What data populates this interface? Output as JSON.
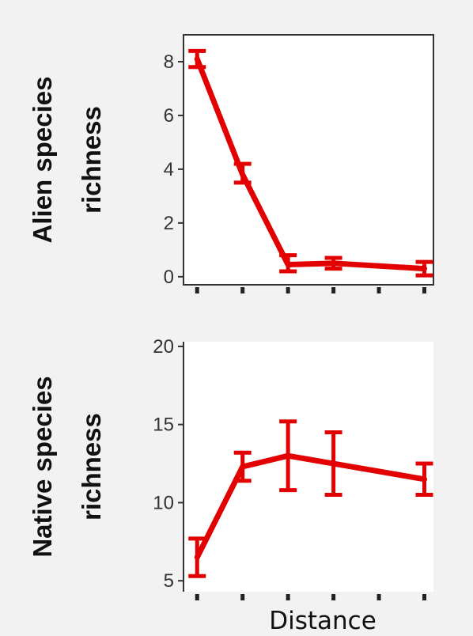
{
  "chart_data": [
    {
      "type": "line",
      "ylabel_lines": [
        "Alien species",
        "richness"
      ],
      "xlabel": "",
      "ylim": [
        -0.3,
        9
      ],
      "yticks": [
        0,
        2,
        4,
        6,
        8
      ],
      "x": [
        1,
        2,
        3,
        4,
        5,
        6
      ],
      "xlim": [
        0.7,
        6.2
      ],
      "grid": false,
      "color": "#e30000",
      "series": [
        {
          "points": [
            {
              "x": 1,
              "y": 8.1,
              "lo": 7.8,
              "hi": 8.4
            },
            {
              "x": 2,
              "y": 3.8,
              "lo": 3.5,
              "hi": 4.2
            },
            {
              "x": 3,
              "y": 0.45,
              "lo": 0.2,
              "hi": 0.8
            },
            {
              "x": 4,
              "y": 0.5,
              "lo": 0.3,
              "hi": 0.7
            },
            {
              "x": 6,
              "y": 0.3,
              "lo": 0.05,
              "hi": 0.55
            }
          ]
        }
      ]
    },
    {
      "type": "line",
      "ylabel_lines": [
        "Native species",
        "richness"
      ],
      "xlabel": "Distance",
      "ylim": [
        4.3,
        20.3
      ],
      "yticks": [
        5,
        10,
        15,
        20
      ],
      "x": [
        1,
        2,
        3,
        4,
        5,
        6
      ],
      "xlim": [
        0.7,
        6.2
      ],
      "grid": false,
      "color": "#e30000",
      "series": [
        {
          "points": [
            {
              "x": 1,
              "y": 6.5,
              "lo": 5.3,
              "hi": 7.7
            },
            {
              "x": 2,
              "y": 12.3,
              "lo": 11.4,
              "hi": 13.2
            },
            {
              "x": 3,
              "y": 13.0,
              "lo": 10.8,
              "hi": 15.2
            },
            {
              "x": 4,
              "y": 12.5,
              "lo": 10.5,
              "hi": 14.5
            },
            {
              "x": 6,
              "y": 11.5,
              "lo": 10.5,
              "hi": 12.5
            }
          ]
        }
      ]
    }
  ]
}
